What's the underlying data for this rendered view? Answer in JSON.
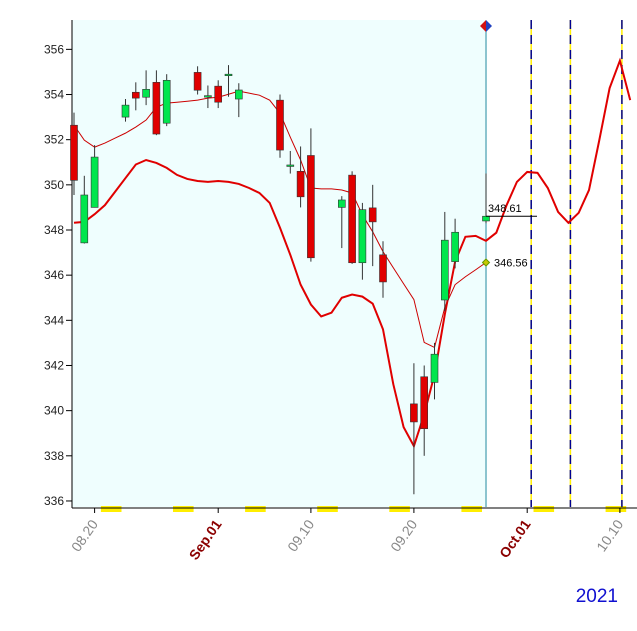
{
  "chart_data": {
    "type": "candlestick",
    "categories": [
      null,
      null,
      "08.20",
      null,
      null,
      null,
      null,
      null,
      null,
      null,
      null,
      null,
      null,
      null,
      "Sep.01",
      null,
      null,
      null,
      null,
      null,
      null,
      null,
      null,
      "09.10",
      null,
      null,
      null,
      null,
      null,
      null,
      null,
      null,
      null,
      "09.20",
      null,
      null,
      null,
      null,
      null,
      null,
      null,
      null,
      null,
      null,
      "Oct.01",
      null,
      null,
      null,
      null,
      null,
      null,
      null,
      null,
      "10.10",
      null
    ],
    "open": [
      352.64,
      347.43,
      349.0,
      null,
      null,
      353.0,
      354.1,
      353.88,
      354.54,
      352.73,
      null,
      null,
      354.98,
      353.9,
      354.37,
      354.9,
      353.8,
      null,
      null,
      null,
      353.75,
      350.88,
      350.6,
      351.3,
      null,
      null,
      349.0,
      350.43,
      346.55,
      348.98,
      346.9,
      null,
      null,
      340.3,
      341.5,
      341.25,
      344.9,
      346.6,
      null,
      null,
      348.4,
      null,
      null,
      null,
      null,
      null,
      null,
      null,
      null,
      null,
      null,
      null,
      null,
      null,
      null
    ],
    "high": [
      353.2,
      350.4,
      351.76,
      null,
      null,
      353.8,
      354.54,
      355.07,
      355.07,
      354.9,
      null,
      null,
      355.25,
      354.4,
      354.63,
      355.3,
      354.5,
      null,
      null,
      null,
      354.0,
      351.5,
      351.7,
      352.5,
      null,
      null,
      349.5,
      350.6,
      349.2,
      350.0,
      347.5,
      null,
      null,
      342.1,
      342.0,
      343.0,
      348.8,
      348.5,
      null,
      null,
      350.5,
      null,
      null,
      null,
      null,
      null,
      null,
      null,
      null,
      null,
      null,
      null,
      null,
      null,
      null
    ],
    "low": [
      349.55,
      347.4,
      349.0,
      null,
      null,
      352.8,
      353.3,
      353.53,
      352.2,
      352.6,
      null,
      null,
      354.0,
      353.4,
      353.4,
      353.9,
      353.0,
      null,
      null,
      null,
      351.2,
      350.5,
      349.0,
      346.6,
      null,
      null,
      347.2,
      346.5,
      345.8,
      346.4,
      345.0,
      null,
      null,
      336.3,
      338.0,
      340.5,
      344.4,
      346.3,
      null,
      null,
      348.3,
      null,
      null,
      null,
      null,
      null,
      null,
      null,
      null,
      null,
      null,
      null,
      null,
      null,
      null
    ],
    "close": [
      350.2,
      349.55,
      351.23,
      null,
      null,
      353.53,
      353.84,
      354.23,
      352.25,
      354.63,
      null,
      null,
      354.19,
      353.95,
      353.66,
      354.9,
      354.2,
      null,
      null,
      null,
      351.54,
      350.88,
      349.47,
      346.77,
      null,
      null,
      349.33,
      346.55,
      348.9,
      348.36,
      345.7,
      null,
      null,
      339.5,
      339.2,
      342.5,
      347.55,
      347.9,
      null,
      null,
      348.61,
      null,
      null,
      null,
      null,
      null,
      null,
      null,
      null,
      null,
      null,
      null,
      null,
      null,
      null
    ],
    "up_color": "#00e64d",
    "down_color": "#e00000",
    "series": [
      {
        "color": "#e00000",
        "values": [
          348.32,
          348.36,
          348.7,
          349.1,
          349.7,
          350.3,
          350.9,
          351.1,
          350.97,
          350.75,
          350.44,
          350.26,
          350.17,
          350.13,
          350.17,
          350.13,
          350.04,
          349.86,
          349.64,
          349.2,
          348.1,
          346.9,
          345.58,
          344.7,
          344.17,
          344.34,
          345.0,
          345.14,
          345.05,
          344.74,
          343.6,
          341.17,
          339.27,
          338.43,
          339.84,
          341.6,
          344.26,
          346.6,
          347.7,
          347.74,
          347.52,
          347.88,
          349.1,
          350.13,
          350.57,
          350.53,
          349.86,
          348.8,
          348.32,
          348.76,
          349.77,
          351.98,
          354.28,
          355.5,
          353.75
        ]
      },
      {
        "color": "#cc0000",
        "values": [
          352.64,
          351.98,
          351.67,
          351.85,
          352.07,
          352.29,
          352.56,
          352.87,
          353.44,
          353.62,
          353.66,
          353.7,
          353.75,
          353.84,
          353.88,
          354.01,
          354.15,
          354.06,
          353.97,
          353.75,
          353.17,
          352.11,
          351.1,
          349.86,
          349.82,
          349.82,
          349.77,
          349.64,
          348.67,
          347.92,
          347.04,
          346.33,
          345.62,
          344.92,
          343.02,
          342.8,
          344.57,
          345.58,
          345.93,
          346.24,
          346.56,
          null,
          null,
          null,
          null,
          null,
          null,
          null,
          null,
          null,
          null,
          null,
          null,
          null,
          null
        ]
      }
    ],
    "ylim": [
      335.6,
      357.3
    ],
    "yticks": [
      336,
      338,
      340,
      342,
      344,
      346,
      348,
      350,
      352,
      354,
      356
    ],
    "footer": "2021"
  }
}
